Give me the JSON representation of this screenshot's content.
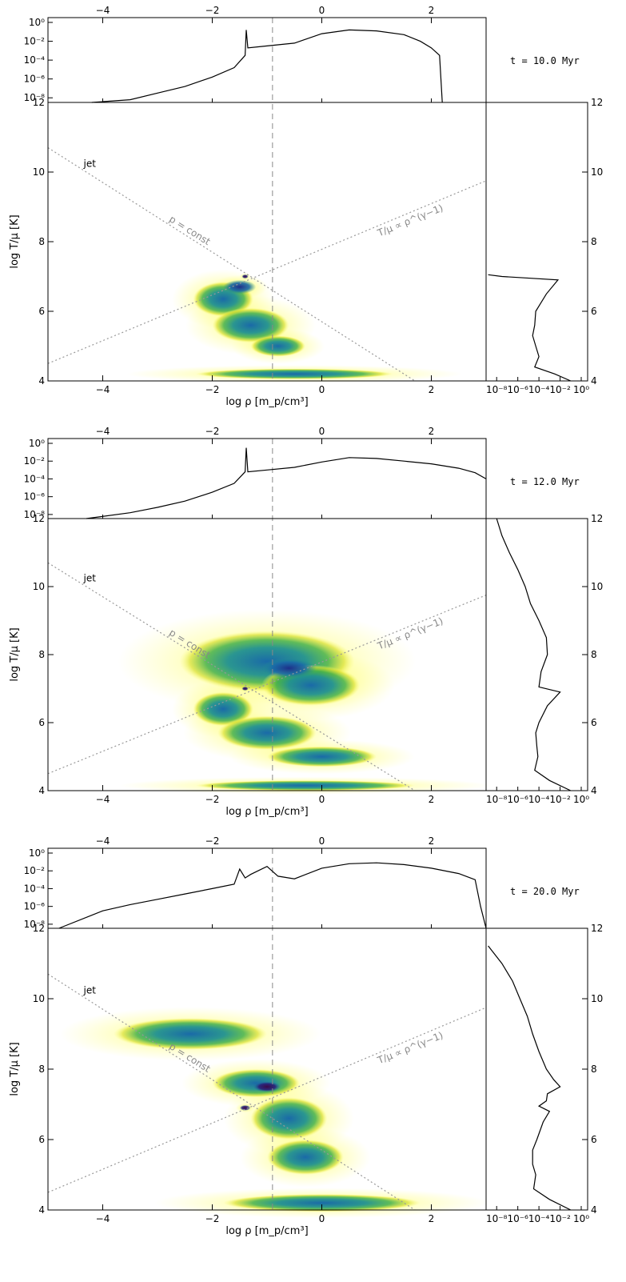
{
  "figure": {
    "xlabel": "log ρ [m_p/cm³]",
    "ylabel": "log T/μ [K]",
    "colors": {
      "frame": "#000000",
      "reference_line": "#999999",
      "dashed_line": "#888888",
      "annotation": "#888888"
    }
  },
  "chart_data": [
    {
      "type": "heatmap",
      "time_label": "t = 10.0 Myr",
      "xlim": [
        -5,
        3
      ],
      "ylim": [
        4,
        12
      ],
      "x_ticks": [
        -4,
        -2,
        0,
        2
      ],
      "y_ticks": [
        4,
        6,
        8,
        10,
        12
      ],
      "pdf_ticks": [
        "10⁰",
        "10⁻²",
        "10⁻⁴",
        "10⁻⁶",
        "10⁻⁸"
      ],
      "pdf_exponents": [
        0,
        -2,
        -4,
        -6,
        -8
      ],
      "pdf_xtick_labels": [
        "10⁻⁸",
        "10⁻⁶",
        "10⁻⁴",
        "10⁻²",
        "10⁰"
      ],
      "dashed_x": -0.9,
      "annotations": {
        "jet": "jet",
        "p_const": "p = const",
        "adiabat": "T/μ ∝ ρ^(γ−1)"
      },
      "density_pdf": {
        "x": [
          -4.2,
          -3.5,
          -3,
          -2.5,
          -2,
          -1.6,
          -1.4,
          -1.38,
          -1.35,
          -1.0,
          -0.5,
          0,
          0.5,
          1.0,
          1.5,
          1.8,
          2.0,
          2.15,
          2.2
        ],
        "log_pdf": [
          -9,
          -8.2,
          -7.5,
          -6.8,
          -5.8,
          -4.8,
          -3.5,
          -0.8,
          -2.7,
          -2.5,
          -2.2,
          -1.2,
          -0.8,
          -0.9,
          -1.3,
          -2.0,
          -2.7,
          -3.5,
          -9
        ]
      },
      "temperature_pdf": {
        "y": [
          4.0,
          4.2,
          4.4,
          4.7,
          5.0,
          5.3,
          5.6,
          6.0,
          6.5,
          6.9,
          7.0,
          7.05
        ],
        "log_pdf": [
          -1.0,
          -2.5,
          -4.4,
          -4.0,
          -4.3,
          -4.6,
          -4.4,
          -4.3,
          -3.3,
          -2.2,
          -7.5,
          -8.8
        ]
      },
      "blobs": [
        {
          "x": -1.8,
          "y": 6.35,
          "rx": 0.55,
          "ry": 0.5,
          "level": 3
        },
        {
          "x": -1.3,
          "y": 5.6,
          "rx": 0.7,
          "ry": 0.5,
          "level": 3
        },
        {
          "x": -0.8,
          "y": 5.0,
          "rx": 0.5,
          "ry": 0.3,
          "level": 3
        },
        {
          "x": -0.5,
          "y": 4.2,
          "rx": 1.8,
          "ry": 0.15,
          "level": 3
        },
        {
          "x": -1.5,
          "y": 6.7,
          "rx": 0.3,
          "ry": 0.2,
          "level": 2
        },
        {
          "x": -1.4,
          "y": 7.0,
          "rx": 0.06,
          "ry": 0.06,
          "level": 1
        }
      ]
    },
    {
      "type": "heatmap",
      "time_label": "t = 12.0 Myr",
      "xlim": [
        -5,
        3
      ],
      "ylim": [
        4,
        12
      ],
      "x_ticks": [
        -4,
        -2,
        0,
        2
      ],
      "y_ticks": [
        4,
        6,
        8,
        10,
        12
      ],
      "pdf_ticks": [
        "10⁰",
        "10⁻²",
        "10⁻⁴",
        "10⁻⁶",
        "10⁻⁸"
      ],
      "pdf_exponents": [
        0,
        -2,
        -4,
        -6,
        -8
      ],
      "pdf_xtick_labels": [
        "10⁻⁸",
        "10⁻⁶",
        "10⁻⁴",
        "10⁻²",
        "10⁰"
      ],
      "dashed_x": -0.9,
      "annotations": {
        "jet": "jet",
        "p_const": "p = const",
        "adiabat": "T/μ ∝ ρ^(γ−1)"
      },
      "density_pdf": {
        "x": [
          -4.3,
          -3.5,
          -3,
          -2.5,
          -2,
          -1.6,
          -1.4,
          -1.38,
          -1.35,
          -1.0,
          -0.5,
          0,
          0.5,
          1.0,
          1.5,
          2.0,
          2.5,
          2.8,
          3.0
        ],
        "log_pdf": [
          -9,
          -7.8,
          -7.2,
          -6.5,
          -5.5,
          -4.5,
          -3.2,
          -0.5,
          -3.2,
          -3.0,
          -2.7,
          -2.1,
          -1.6,
          -1.7,
          -2.0,
          -2.3,
          -2.8,
          -3.3,
          -4.0
        ]
      },
      "temperature_pdf": {
        "y": [
          4.0,
          4.3,
          4.6,
          5.0,
          5.3,
          5.7,
          6.0,
          6.5,
          6.9,
          7.05,
          7.5,
          8.0,
          8.5,
          9.0,
          9.5,
          10.0,
          10.5,
          11.0,
          11.5,
          12.0
        ],
        "log_pdf": [
          -1.0,
          -3.0,
          -4.4,
          -4.1,
          -4.2,
          -4.3,
          -4.0,
          -3.2,
          -2.0,
          -4.0,
          -3.8,
          -3.2,
          -3.3,
          -4.0,
          -4.8,
          -5.3,
          -6.0,
          -6.8,
          -7.5,
          -8.0
        ]
      },
      "blobs": [
        {
          "x": -1.0,
          "y": 7.8,
          "rx": 1.6,
          "ry": 0.9,
          "level": 3
        },
        {
          "x": -0.2,
          "y": 7.1,
          "rx": 0.9,
          "ry": 0.6,
          "level": 3
        },
        {
          "x": -1.8,
          "y": 6.4,
          "rx": 0.55,
          "ry": 0.5,
          "level": 3
        },
        {
          "x": -1.0,
          "y": 5.7,
          "rx": 0.9,
          "ry": 0.5,
          "level": 3
        },
        {
          "x": 0.0,
          "y": 5.0,
          "rx": 1.0,
          "ry": 0.3,
          "level": 3
        },
        {
          "x": -0.3,
          "y": 4.15,
          "rx": 2.0,
          "ry": 0.15,
          "level": 3
        },
        {
          "x": -0.6,
          "y": 7.6,
          "rx": 0.5,
          "ry": 0.3,
          "level": 2
        },
        {
          "x": -1.4,
          "y": 7.0,
          "rx": 0.06,
          "ry": 0.06,
          "level": 1
        }
      ]
    },
    {
      "type": "heatmap",
      "time_label": "t = 20.0 Myr",
      "xlim": [
        -5,
        3
      ],
      "ylim": [
        4,
        12
      ],
      "x_ticks": [
        -4,
        -2,
        0,
        2
      ],
      "y_ticks": [
        4,
        6,
        8,
        10,
        12
      ],
      "pdf_ticks": [
        "10⁰",
        "10⁻²",
        "10⁻⁴",
        "10⁻⁶",
        "10⁻⁸"
      ],
      "pdf_exponents": [
        0,
        -2,
        -4,
        -6,
        -8
      ],
      "pdf_xtick_labels": [
        "10⁻⁸",
        "10⁻⁶",
        "10⁻⁴",
        "10⁻²",
        "10⁰"
      ],
      "dashed_x": -0.9,
      "annotations": {
        "jet": "jet",
        "p_const": "p = const",
        "adiabat": "T/μ ∝ ρ^(γ−1)"
      },
      "density_pdf": {
        "x": [
          -4.8,
          -4.0,
          -3.5,
          -3.0,
          -2.5,
          -2.0,
          -1.6,
          -1.5,
          -1.4,
          -1.3,
          -1.0,
          -0.8,
          -0.7,
          -0.5,
          0,
          0.5,
          1.0,
          1.5,
          2.0,
          2.5,
          2.8,
          2.9,
          3.0
        ],
        "log_pdf": [
          -9,
          -6.5,
          -5.8,
          -5.2,
          -4.6,
          -4.0,
          -3.5,
          -1.8,
          -2.8,
          -2.4,
          -1.5,
          -2.6,
          -2.7,
          -2.9,
          -1.7,
          -1.2,
          -1.1,
          -1.3,
          -1.7,
          -2.3,
          -3.0,
          -6.0,
          -9.0
        ]
      },
      "temperature_pdf": {
        "y": [
          4.0,
          4.3,
          4.6,
          5.0,
          5.3,
          5.7,
          6.0,
          6.5,
          6.8,
          6.95,
          7.1,
          7.3,
          7.5,
          7.7,
          8.0,
          8.5,
          9.0,
          9.5,
          10.0,
          10.5,
          11.0,
          11.5
        ],
        "log_pdf": [
          -1.0,
          -3.0,
          -4.5,
          -4.3,
          -4.6,
          -4.6,
          -4.2,
          -3.6,
          -3.0,
          -4.0,
          -3.3,
          -3.2,
          -2.0,
          -2.6,
          -3.3,
          -4.0,
          -4.6,
          -5.1,
          -5.8,
          -6.5,
          -7.5,
          -8.8
        ]
      },
      "blobs": [
        {
          "x": -2.4,
          "y": 9.0,
          "rx": 1.4,
          "ry": 0.45,
          "level": 3
        },
        {
          "x": -1.2,
          "y": 7.6,
          "rx": 0.8,
          "ry": 0.4,
          "level": 3
        },
        {
          "x": -0.6,
          "y": 6.6,
          "rx": 0.7,
          "ry": 0.6,
          "level": 3
        },
        {
          "x": -0.3,
          "y": 5.5,
          "rx": 0.7,
          "ry": 0.5,
          "level": 3
        },
        {
          "x": 0.0,
          "y": 4.2,
          "rx": 1.8,
          "ry": 0.25,
          "level": 3
        },
        {
          "x": -1.0,
          "y": 7.5,
          "rx": 0.25,
          "ry": 0.15,
          "level": 1
        },
        {
          "x": -1.4,
          "y": 6.9,
          "rx": 0.1,
          "ry": 0.08,
          "level": 1
        }
      ]
    }
  ]
}
